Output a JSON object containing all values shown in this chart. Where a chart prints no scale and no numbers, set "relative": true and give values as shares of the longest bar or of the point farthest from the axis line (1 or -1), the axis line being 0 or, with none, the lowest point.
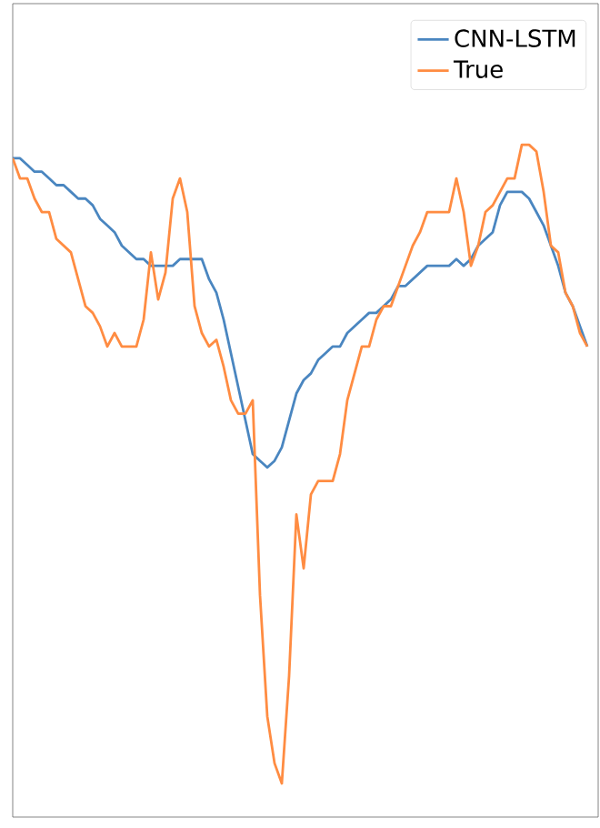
{
  "chart_data": {
    "type": "line",
    "relative": true,
    "legend": "top right",
    "marker": "none",
    "line_style": "solid",
    "categories": [
      null,
      null,
      null,
      null,
      null,
      null,
      null,
      null,
      null,
      null,
      null,
      null,
      null,
      null,
      null,
      null,
      null,
      null,
      null,
      null,
      null,
      null,
      null,
      null,
      null,
      null,
      null,
      null,
      null,
      null,
      null,
      null,
      null,
      null,
      null,
      null,
      null,
      null,
      null,
      null,
      null,
      null,
      null,
      null,
      null,
      null,
      null,
      null,
      null,
      null,
      null,
      null,
      null,
      null,
      null,
      null,
      null,
      null,
      null,
      null,
      null,
      null,
      null,
      null,
      null,
      null,
      null,
      null,
      null,
      null,
      null,
      null,
      null,
      null,
      null,
      null,
      null,
      null,
      null,
      null
    ],
    "series": [
      {
        "name": "CNN-LSTM",
        "color": "#4a86c0",
        "values": [
          0.98,
          0.98,
          0.97,
          0.96,
          0.96,
          0.95,
          0.94,
          0.94,
          0.93,
          0.92,
          0.92,
          0.91,
          0.89,
          0.88,
          0.87,
          0.85,
          0.84,
          0.83,
          0.83,
          0.82,
          0.82,
          0.82,
          0.82,
          0.83,
          0.83,
          0.83,
          0.83,
          0.8,
          0.78,
          0.74,
          0.69,
          0.64,
          0.59,
          0.54,
          0.53,
          0.52,
          0.53,
          0.55,
          0.59,
          0.63,
          0.65,
          0.66,
          0.68,
          0.69,
          0.7,
          0.7,
          0.72,
          0.73,
          0.74,
          0.75,
          0.75,
          0.76,
          0.77,
          0.79,
          0.79,
          0.8,
          0.81,
          0.82,
          0.82,
          0.82,
          0.82,
          0.83,
          0.82,
          0.83,
          0.85,
          0.86,
          0.87,
          0.91,
          0.93,
          0.93,
          0.93,
          0.92,
          0.9,
          0.88,
          0.85,
          0.82,
          0.78,
          0.76,
          0.73,
          0.7
        ]
      },
      {
        "name": "True",
        "color": "#ff8c42",
        "values": [
          0.98,
          0.95,
          0.95,
          0.92,
          0.9,
          0.9,
          0.86,
          0.85,
          0.84,
          0.8,
          0.76,
          0.75,
          0.73,
          0.7,
          0.72,
          0.7,
          0.7,
          0.7,
          0.74,
          0.84,
          0.77,
          0.81,
          0.92,
          0.95,
          0.9,
          0.76,
          0.72,
          0.7,
          0.71,
          0.67,
          0.62,
          0.6,
          0.6,
          0.62,
          0.33,
          0.15,
          0.08,
          0.05,
          0.21,
          0.45,
          0.37,
          0.48,
          0.5,
          0.5,
          0.5,
          0.54,
          0.62,
          0.66,
          0.7,
          0.7,
          0.74,
          0.76,
          0.76,
          0.79,
          0.82,
          0.85,
          0.87,
          0.9,
          0.9,
          0.9,
          0.9,
          0.95,
          0.9,
          0.82,
          0.85,
          0.9,
          0.91,
          0.93,
          0.95,
          0.95,
          1.0,
          1.0,
          0.99,
          0.93,
          0.85,
          0.84,
          0.78,
          0.76,
          0.72,
          0.7
        ]
      }
    ]
  }
}
